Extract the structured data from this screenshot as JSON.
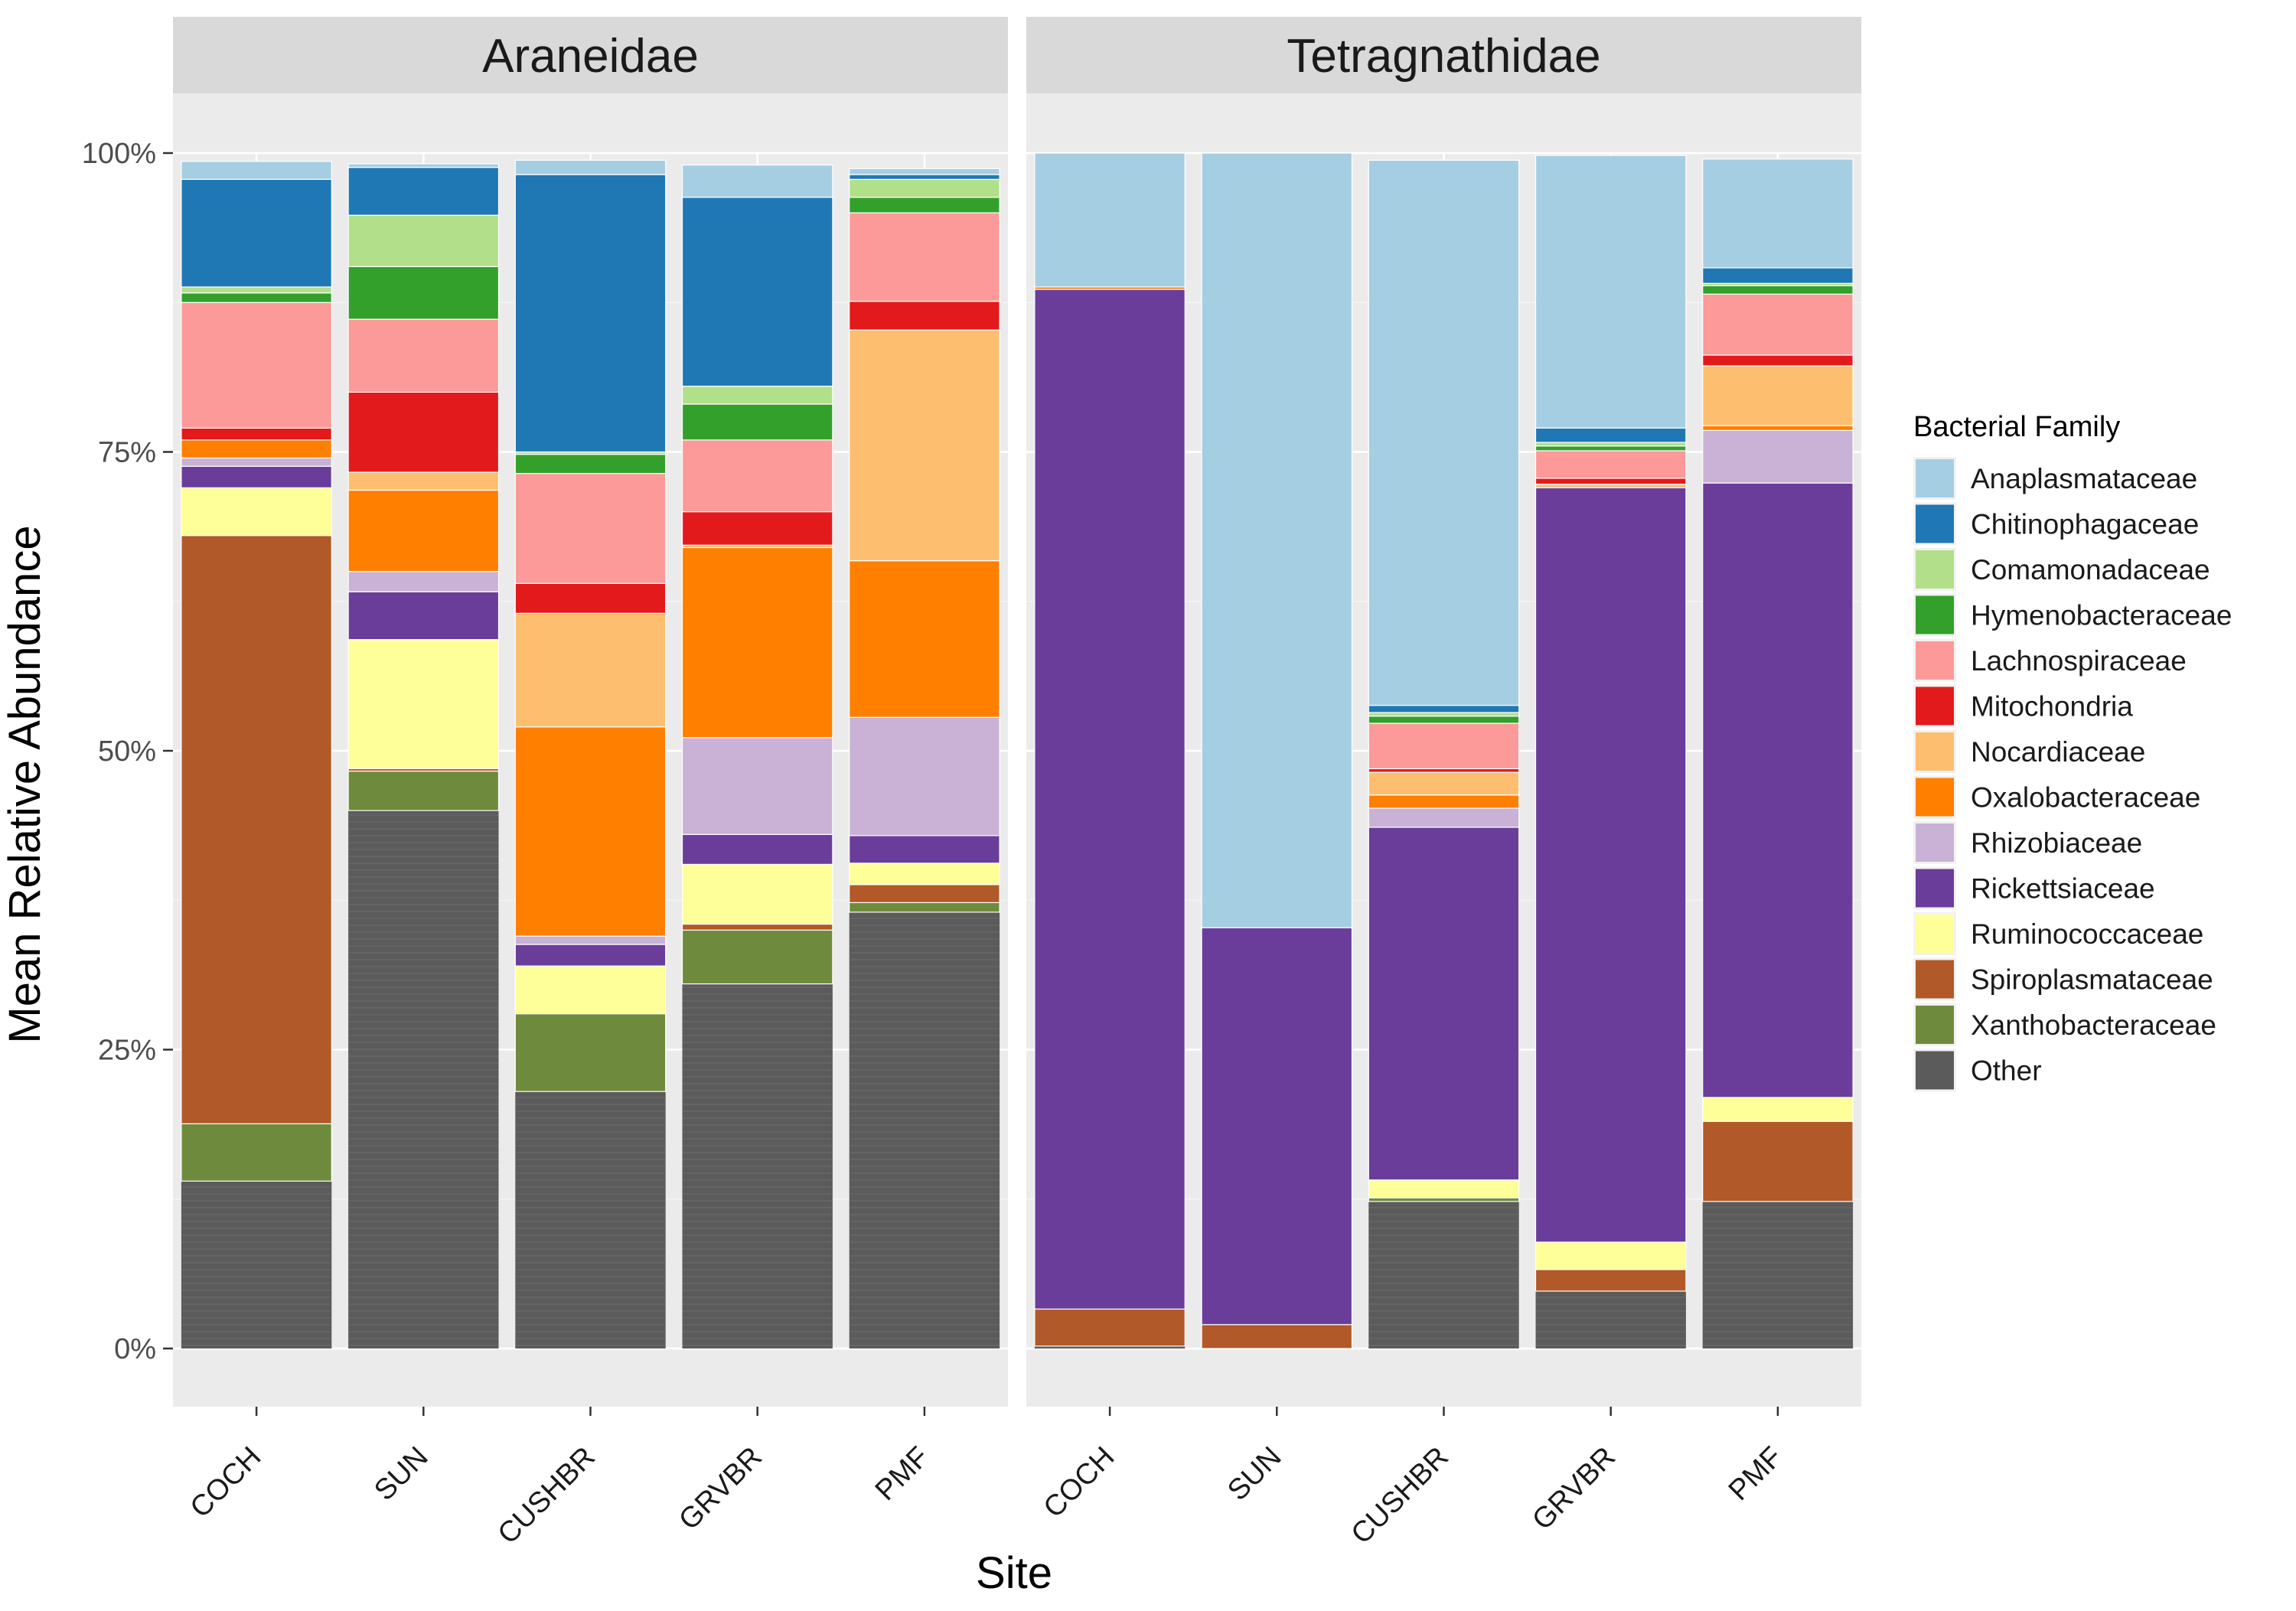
{
  "chart_data": {
    "type": "bar",
    "stacked": true,
    "xlabel": "Site",
    "ylabel": "Mean Relative Abundance",
    "ylim": [
      0,
      100
    ],
    "y_ticks": [
      0,
      25,
      50,
      75,
      100
    ],
    "y_tick_labels": [
      "0%",
      "25%",
      "50%",
      "75%",
      "100%"
    ],
    "categories": [
      "COCH",
      "SUN",
      "CUSHBR",
      "GRVBR",
      "PMF"
    ],
    "legend": {
      "title": "Bacterial Family",
      "position": "right",
      "entries": [
        {
          "name": "Anaplasmataceae",
          "color": "#A6CEE3"
        },
        {
          "name": "Chitinophagaceae",
          "color": "#1F78B4"
        },
        {
          "name": "Comamonadaceae",
          "color": "#B2DF8A"
        },
        {
          "name": "Hymenobacteraceae",
          "color": "#33A02C"
        },
        {
          "name": "Lachnospiraceae",
          "color": "#FB9A99"
        },
        {
          "name": "Mitochondria",
          "color": "#E31A1C"
        },
        {
          "name": "Nocardiaceae",
          "color": "#FDBF6F"
        },
        {
          "name": "Oxalobacteraceae",
          "color": "#FF7F00"
        },
        {
          "name": "Rhizobiaceae",
          "color": "#CAB2D6"
        },
        {
          "name": "Rickettsiaceae",
          "color": "#6A3D9A"
        },
        {
          "name": "Ruminococcaceae",
          "color": "#FFFF99"
        },
        {
          "name": "Spiroplasmataceae",
          "color": "#B15928"
        },
        {
          "name": "Xanthobacteraceae",
          "color": "#6E8B3D"
        },
        {
          "name": "Other",
          "color": "#5B5B5B"
        }
      ]
    },
    "panels": [
      {
        "title": "Araneidae",
        "bars": [
          {
            "category": "COCH",
            "segments": [
              {
                "family": "Other",
                "value": 14
              },
              {
                "family": "Xanthobacteraceae",
                "value": 4.8
              },
              {
                "family": "Spiroplasmataceae",
                "value": 49.2
              },
              {
                "family": "Ruminococcaceae",
                "value": 4
              },
              {
                "family": "Rickettsiaceae",
                "value": 1.8
              },
              {
                "family": "Rhizobiaceae",
                "value": 0.7
              },
              {
                "family": "Oxalobacteraceae",
                "value": 1.5
              },
              {
                "family": "Mitochondria",
                "value": 1
              },
              {
                "family": "Lachnospiraceae",
                "value": 10.5
              },
              {
                "family": "Hymenobacteraceae",
                "value": 0.8
              },
              {
                "family": "Comamonadaceae",
                "value": 0.5
              },
              {
                "family": "Chitinophagaceae",
                "value": 9
              },
              {
                "family": "Anaplasmataceae",
                "value": 1.5
              }
            ]
          },
          {
            "category": "SUN",
            "segments": [
              {
                "family": "Other",
                "value": 45
              },
              {
                "family": "Xanthobacteraceae",
                "value": 3.3
              },
              {
                "family": "Spiroplasmataceae",
                "value": 0.2
              },
              {
                "family": "Ruminococcaceae",
                "value": 10.8
              },
              {
                "family": "Rickettsiaceae",
                "value": 4
              },
              {
                "family": "Rhizobiaceae",
                "value": 1.7
              },
              {
                "family": "Oxalobacteraceae",
                "value": 6.8
              },
              {
                "family": "Nocardiaceae",
                "value": 1.5
              },
              {
                "family": "Mitochondria",
                "value": 6.7
              },
              {
                "family": "Lachnospiraceae",
                "value": 6.1
              },
              {
                "family": "Hymenobacteraceae",
                "value": 4.4
              },
              {
                "family": "Comamonadaceae",
                "value": 4.3
              },
              {
                "family": "Chitinophagaceae",
                "value": 4
              },
              {
                "family": "Anaplasmataceae",
                "value": 0.3
              }
            ]
          },
          {
            "category": "CUSHBR",
            "segments": [
              {
                "family": "Other",
                "value": 21.5
              },
              {
                "family": "Xanthobacteraceae",
                "value": 6.5
              },
              {
                "family": "Ruminococcaceae",
                "value": 4
              },
              {
                "family": "Rickettsiaceae",
                "value": 1.8
              },
              {
                "family": "Rhizobiaceae",
                "value": 0.7
              },
              {
                "family": "Oxalobacteraceae",
                "value": 17.5
              },
              {
                "family": "Nocardiaceae",
                "value": 9.5
              },
              {
                "family": "Mitochondria",
                "value": 2.5
              },
              {
                "family": "Lachnospiraceae",
                "value": 9.2
              },
              {
                "family": "Hymenobacteraceae",
                "value": 1.6
              },
              {
                "family": "Comamonadaceae",
                "value": 0.2
              },
              {
                "family": "Chitinophagaceae",
                "value": 23.2
              },
              {
                "family": "Anaplasmataceae",
                "value": 1.2
              }
            ]
          },
          {
            "category": "GRVBR",
            "segments": [
              {
                "family": "Other",
                "value": 30.5
              },
              {
                "family": "Xanthobacteraceae",
                "value": 4.5
              },
              {
                "family": "Spiroplasmataceae",
                "value": 0.5
              },
              {
                "family": "Ruminococcaceae",
                "value": 5
              },
              {
                "family": "Rickettsiaceae",
                "value": 2.5
              },
              {
                "family": "Rhizobiaceae",
                "value": 8.1
              },
              {
                "family": "Oxalobacteraceae",
                "value": 15.9
              },
              {
                "family": "Nocardiaceae",
                "value": 0.2
              },
              {
                "family": "Mitochondria",
                "value": 2.8
              },
              {
                "family": "Lachnospiraceae",
                "value": 6
              },
              {
                "family": "Hymenobacteraceae",
                "value": 3
              },
              {
                "family": "Comamonadaceae",
                "value": 1.5
              },
              {
                "family": "Chitinophagaceae",
                "value": 15.8
              },
              {
                "family": "Anaplasmataceae",
                "value": 2.7
              }
            ]
          },
          {
            "category": "PMF",
            "segments": [
              {
                "family": "Other",
                "value": 36.5
              },
              {
                "family": "Xanthobacteraceae",
                "value": 0.8
              },
              {
                "family": "Spiroplasmataceae",
                "value": 1.5
              },
              {
                "family": "Ruminococcaceae",
                "value": 1.8
              },
              {
                "family": "Rickettsiaceae",
                "value": 2.3
              },
              {
                "family": "Rhizobiaceae",
                "value": 9.9
              },
              {
                "family": "Oxalobacteraceae",
                "value": 13.1
              },
              {
                "family": "Nocardiaceae",
                "value": 19.3
              },
              {
                "family": "Mitochondria",
                "value": 2.4
              },
              {
                "family": "Lachnospiraceae",
                "value": 7.4
              },
              {
                "family": "Hymenobacteraceae",
                "value": 1.3
              },
              {
                "family": "Comamonadaceae",
                "value": 1.5
              },
              {
                "family": "Chitinophagaceae",
                "value": 0.4
              },
              {
                "family": "Anaplasmataceae",
                "value": 0.5
              }
            ]
          }
        ]
      },
      {
        "title": "Tetragnathidae",
        "bars": [
          {
            "category": "COCH",
            "segments": [
              {
                "family": "Other",
                "value": 0.2
              },
              {
                "family": "Spiroplasmataceae",
                "value": 3.1
              },
              {
                "family": "Rickettsiaceae",
                "value": 85.3
              },
              {
                "family": "Oxalobacteraceae",
                "value": 0.2
              },
              {
                "family": "Anaplasmataceae",
                "value": 11.2
              }
            ]
          },
          {
            "category": "SUN",
            "segments": [
              {
                "family": "Spiroplasmataceae",
                "value": 2
              },
              {
                "family": "Rickettsiaceae",
                "value": 33.2
              },
              {
                "family": "Anaplasmataceae",
                "value": 64.8
              }
            ]
          },
          {
            "category": "CUSHBR",
            "segments": [
              {
                "family": "Other",
                "value": 12.3
              },
              {
                "family": "Xanthobacteraceae",
                "value": 0.3
              },
              {
                "family": "Ruminococcaceae",
                "value": 1.5
              },
              {
                "family": "Rickettsiaceae",
                "value": 29.5
              },
              {
                "family": "Rhizobiaceae",
                "value": 1.6
              },
              {
                "family": "Oxalobacteraceae",
                "value": 1.1
              },
              {
                "family": "Nocardiaceae",
                "value": 1.9
              },
              {
                "family": "Mitochondria",
                "value": 0.3
              },
              {
                "family": "Lachnospiraceae",
                "value": 3.8
              },
              {
                "family": "Hymenobacteraceae",
                "value": 0.6
              },
              {
                "family": "Comamonadaceae",
                "value": 0.3
              },
              {
                "family": "Chitinophagaceae",
                "value": 0.6
              },
              {
                "family": "Anaplasmataceae",
                "value": 45.6
              }
            ]
          },
          {
            "category": "GRVBR",
            "segments": [
              {
                "family": "Other",
                "value": 4.8
              },
              {
                "family": "Spiroplasmataceae",
                "value": 1.8
              },
              {
                "family": "Ruminococcaceae",
                "value": 2.3
              },
              {
                "family": "Rickettsiaceae",
                "value": 63.1
              },
              {
                "family": "Nocardiaceae",
                "value": 0.3
              },
              {
                "family": "Mitochondria",
                "value": 0.5
              },
              {
                "family": "Lachnospiraceae",
                "value": 2.3
              },
              {
                "family": "Hymenobacteraceae",
                "value": 0.4
              },
              {
                "family": "Comamonadaceae",
                "value": 0.3
              },
              {
                "family": "Chitinophagaceae",
                "value": 1.2
              },
              {
                "family": "Anaplasmataceae",
                "value": 22.8
              }
            ]
          },
          {
            "category": "PMF",
            "segments": [
              {
                "family": "Other",
                "value": 12.3
              },
              {
                "family": "Spiroplasmataceae",
                "value": 6.7
              },
              {
                "family": "Ruminococcaceae",
                "value": 2
              },
              {
                "family": "Rickettsiaceae",
                "value": 51.4
              },
              {
                "family": "Rhizobiaceae",
                "value": 4.4
              },
              {
                "family": "Oxalobacteraceae",
                "value": 0.4
              },
              {
                "family": "Nocardiaceae",
                "value": 5
              },
              {
                "family": "Mitochondria",
                "value": 0.9
              },
              {
                "family": "Lachnospiraceae",
                "value": 5.1
              },
              {
                "family": "Hymenobacteraceae",
                "value": 0.7
              },
              {
                "family": "Comamonadaceae",
                "value": 0.2
              },
              {
                "family": "Chitinophagaceae",
                "value": 1.3
              },
              {
                "family": "Anaplasmataceae",
                "value": 9.1
              }
            ]
          }
        ]
      }
    ]
  }
}
